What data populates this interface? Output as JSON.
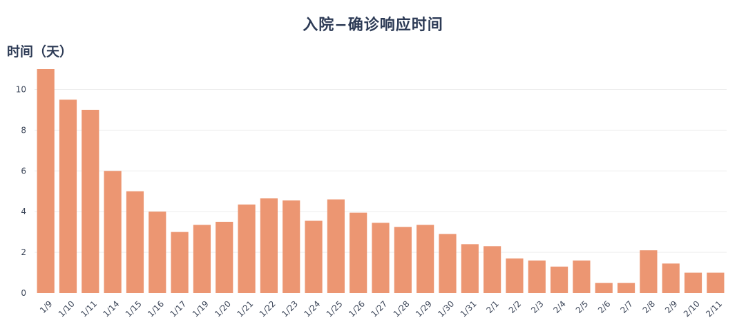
{
  "chart_data": {
    "type": "bar",
    "title": "入院−确诊响应时间",
    "ylabel": "时间（天）",
    "xlabel": "",
    "ylim": [
      0,
      11
    ],
    "yticks": [
      0,
      2,
      4,
      6,
      8,
      10
    ],
    "grid": true,
    "bar_color": "#ec9672",
    "categories": [
      "1/9",
      "1/10",
      "1/11",
      "1/14",
      "1/15",
      "1/16",
      "1/17",
      "1/19",
      "1/20",
      "1/21",
      "1/22",
      "1/23",
      "1/24",
      "1/25",
      "1/26",
      "1/27",
      "1/28",
      "1/29",
      "1/30",
      "1/31",
      "2/1",
      "2/2",
      "2/3",
      "2/4",
      "2/5",
      "2/6",
      "2/7",
      "2/8",
      "2/9",
      "2/10",
      "2/11"
    ],
    "values": [
      11,
      9.5,
      9,
      6,
      5,
      4,
      3,
      3.35,
      3.5,
      4.35,
      4.65,
      4.55,
      3.55,
      4.6,
      3.95,
      3.45,
      3.25,
      3.35,
      2.9,
      2.4,
      2.3,
      1.7,
      1.6,
      1.3,
      1.6,
      0.5,
      0.5,
      2.1,
      1.45,
      1.0,
      1.0
    ]
  }
}
